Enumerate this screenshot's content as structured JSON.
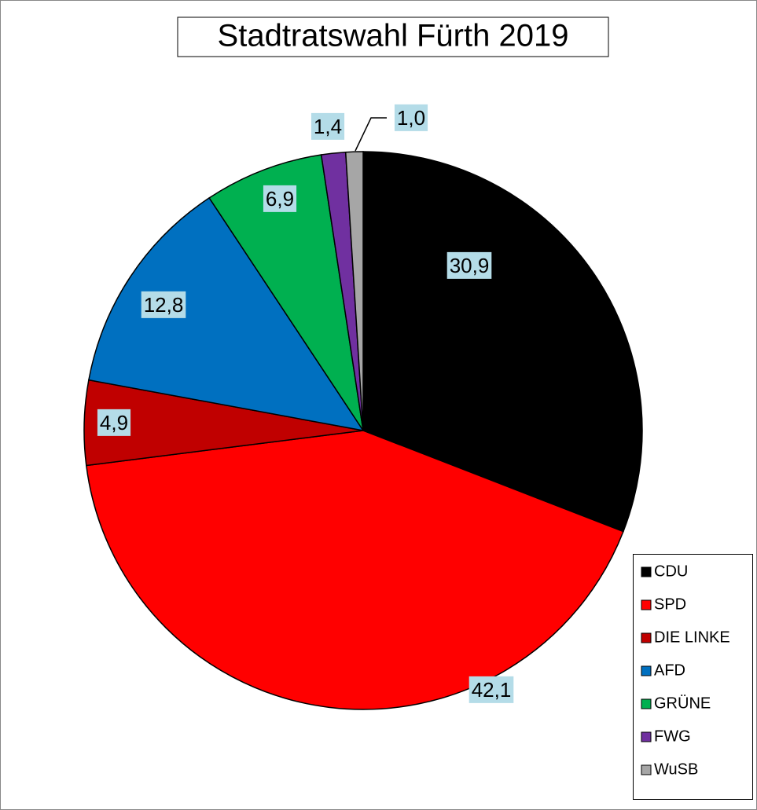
{
  "chart_data": {
    "type": "pie",
    "title": "Stadtratswahl Fürth 2019",
    "categories": [
      "CDU",
      "SPD",
      "DIE LINKE",
      "AFD",
      "GRÜNE",
      "FWG",
      "WuSB"
    ],
    "values": [
      30.9,
      42.1,
      4.9,
      12.8,
      6.9,
      1.4,
      1.0
    ],
    "value_labels": [
      "30,9",
      "42,1",
      "4,9",
      "12,8",
      "6,9",
      "1,4",
      "1,0"
    ],
    "colors": [
      "#000000",
      "#ff0000",
      "#c00000",
      "#0070c0",
      "#00b050",
      "#7030a0",
      "#a6a6a6"
    ],
    "legend": "bottom-right"
  }
}
